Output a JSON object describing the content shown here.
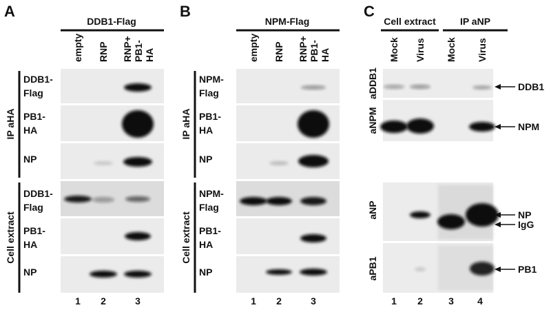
{
  "panels": [
    {
      "letter": "A",
      "header": "DDB1-Flag",
      "columns": [
        [
          "empty"
        ],
        [
          "RNP"
        ],
        [
          "RNP+",
          "PB1-",
          "HA"
        ]
      ],
      "groups": [
        {
          "label": "IP aHA",
          "rows": [
            [
              "DDB1-",
              "Flag"
            ],
            [
              "PB1-",
              "HA"
            ],
            [
              "NP"
            ]
          ]
        },
        {
          "label": "Cell extract",
          "rows": [
            [
              "DDB1-",
              "Flag"
            ],
            [
              "PB1-",
              "HA"
            ],
            [
              "NP"
            ]
          ]
        }
      ],
      "lanes": [
        1,
        2,
        3
      ]
    },
    {
      "letter": "B",
      "header": "NPM-Flag",
      "columns": [
        [
          "empty"
        ],
        [
          "RNP"
        ],
        [
          "RNP+",
          "PB1-",
          "HA"
        ]
      ],
      "groups": [
        {
          "label": "IP aHA",
          "rows": [
            [
              "NPM-",
              "Flag"
            ],
            [
              "PB1-",
              "HA"
            ],
            [
              "NP"
            ]
          ]
        },
        {
          "label": "Cell extract",
          "rows": [
            [
              "NPM-",
              "Flag"
            ],
            [
              "PB1-",
              "HA"
            ],
            [
              "NP"
            ]
          ]
        }
      ],
      "lanes": [
        1,
        2,
        3
      ]
    },
    {
      "letter": "C",
      "headers": [
        "Cell extract",
        "IP aNP"
      ],
      "columns": [
        "Mock",
        "Virus",
        "Mock",
        "Virus"
      ],
      "rows": [
        "aDDB1",
        "aNPM",
        "aNP",
        "aPB1"
      ],
      "markers": [
        "DDB1",
        "NPM",
        "NP",
        "IgG",
        "PB1"
      ],
      "lanes": [
        1,
        2,
        3,
        4
      ]
    }
  ]
}
